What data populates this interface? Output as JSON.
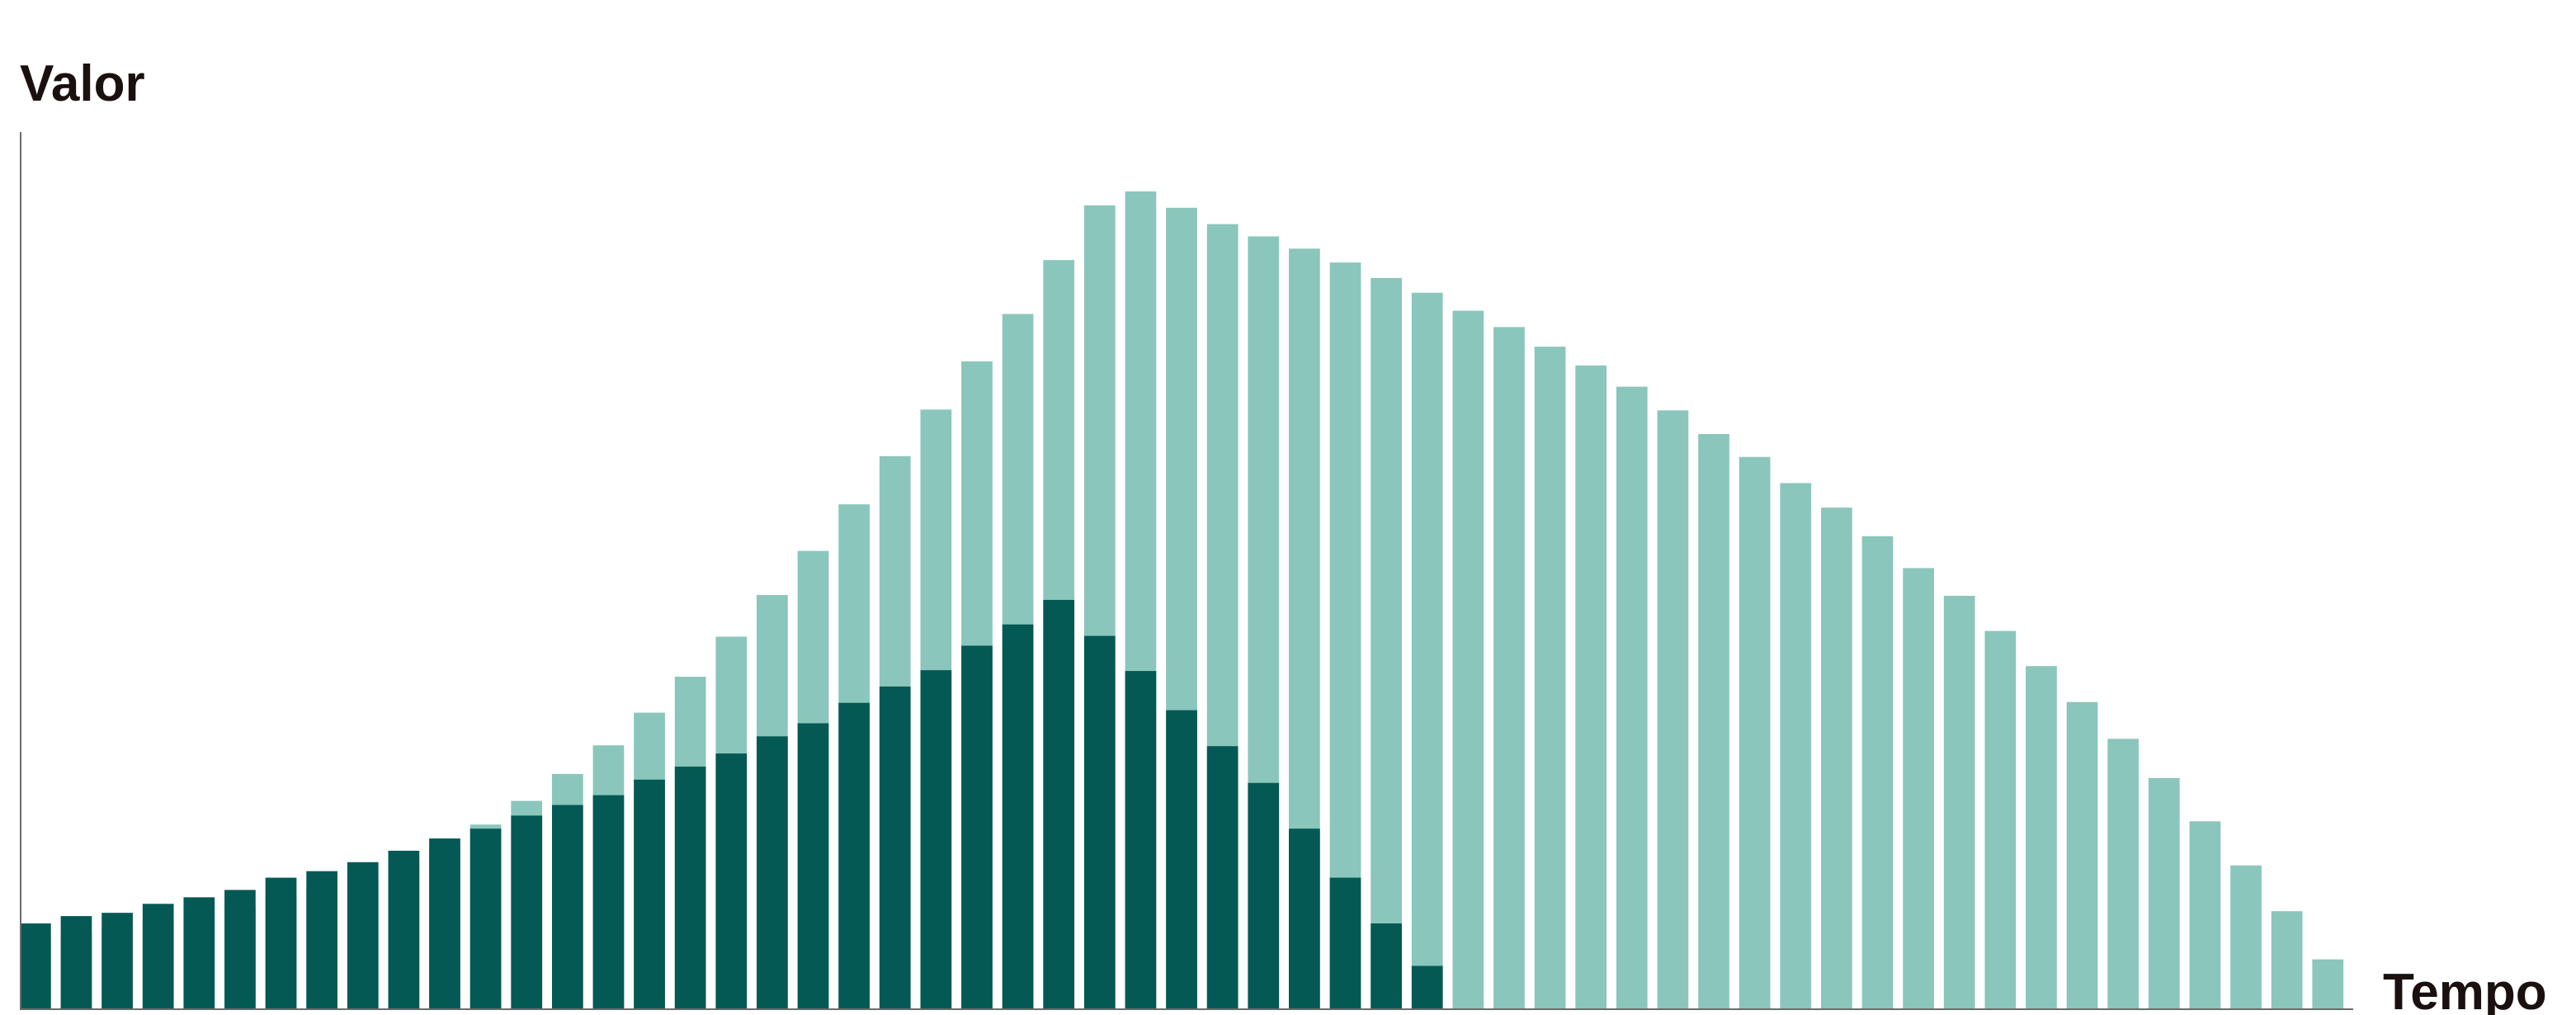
{
  "chart_data": {
    "type": "bar",
    "stacked": false,
    "overlapping_bars": true,
    "ylabel": "Valor",
    "xlabel": "Tempo",
    "ylim": [
      0,
      1000
    ],
    "grid": false,
    "legend": "none",
    "colors": {
      "series_back": "#8ac6bb",
      "series_front": "#045955",
      "axis": "#6b6b6b",
      "text": "#1a1010"
    },
    "series": [
      {
        "values": [
          88,
          93,
          98,
          107,
          115,
          125,
          138,
          150,
          163,
          179,
          200,
          225,
          254,
          287,
          322,
          362,
          406,
          455,
          506,
          560,
          617,
          676,
          733,
          792,
          850,
          916,
          983,
          1000,
          980,
          960,
          945,
          930,
          913,
          894,
          876,
          854,
          834,
          810,
          787,
          761,
          732,
          703,
          675,
          643,
          613,
          578,
          539,
          505,
          462,
          419,
          375,
          330,
          282,
          229,
          175,
          119,
          60
        ]
      },
      {
        "values": [
          104,
          113,
          117,
          128,
          136,
          145,
          160,
          168,
          179,
          193,
          208,
          220,
          236,
          249,
          261,
          280,
          296,
          312,
          333,
          349,
          374,
          394,
          414,
          444,
          470,
          500,
          456,
          413,
          365,
          321,
          276,
          220,
          160,
          104,
          52,
          0,
          0,
          0,
          0,
          0,
          0,
          0,
          0,
          0,
          0,
          0,
          0,
          0,
          0,
          0,
          0,
          0,
          0,
          0,
          0,
          0,
          0
        ]
      }
    ]
  }
}
